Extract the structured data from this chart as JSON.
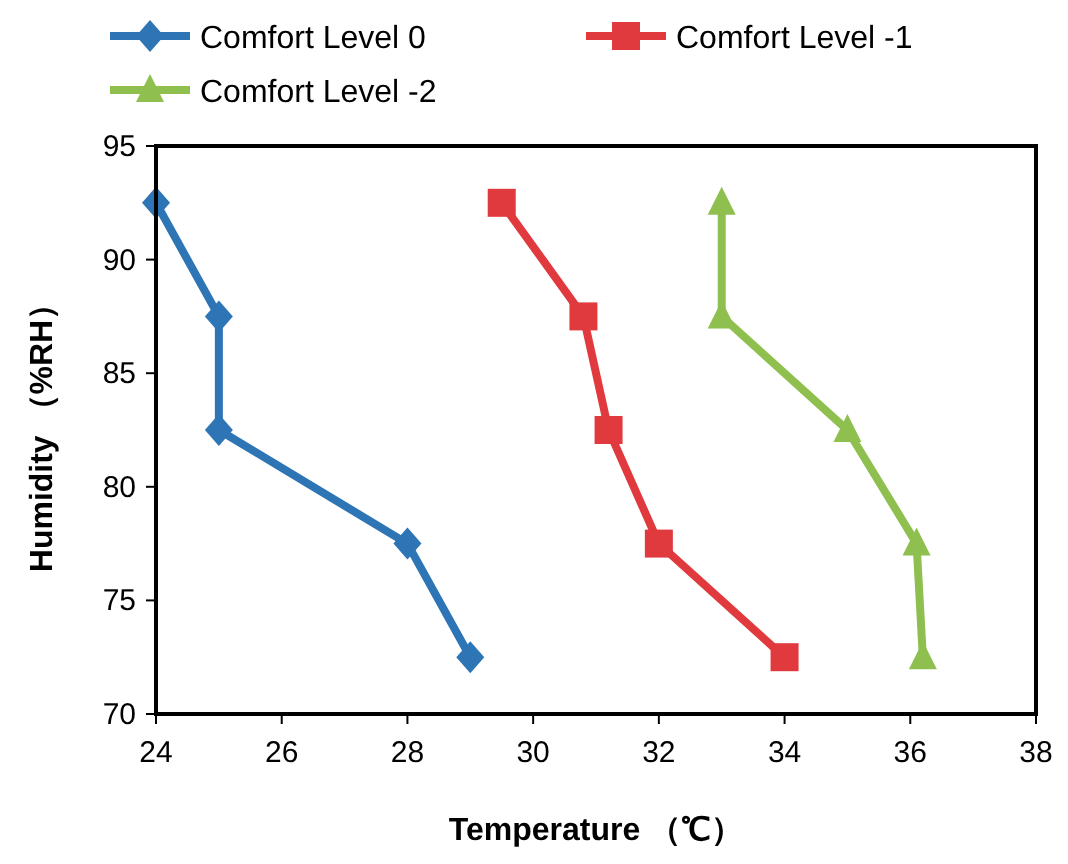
{
  "chart_data": {
    "type": "line",
    "xlabel": "Temperature （℃）",
    "ylabel": "Humidity （%RH）",
    "xlim": [
      24,
      38
    ],
    "xticks": [
      24,
      26,
      28,
      30,
      32,
      34,
      36,
      38
    ],
    "ylim": [
      70,
      95
    ],
    "yticks": [
      70,
      75,
      80,
      85,
      90,
      95
    ],
    "grid": false,
    "legend": "top",
    "line_style": "solid",
    "series": [
      {
        "name": "Comfort Level 0",
        "color": "#2e75b6",
        "marker": "diamond",
        "x": [
          24,
          25,
          25,
          28,
          29
        ],
        "values": [
          92.5,
          87.5,
          82.5,
          77.5,
          72.5
        ]
      },
      {
        "name": "Comfort Level -1",
        "color": "#e0393e",
        "marker": "square",
        "x": [
          29.5,
          30.8,
          31.2,
          32,
          34
        ],
        "values": [
          92.5,
          87.5,
          82.5,
          77.5,
          72.5
        ]
      },
      {
        "name": "Comfort Level -2",
        "color": "#8fc04f",
        "marker": "triangle",
        "x": [
          33,
          33,
          35,
          36.1,
          36.2
        ],
        "values": [
          92.5,
          87.5,
          82.5,
          77.5,
          72.5
        ]
      }
    ]
  }
}
